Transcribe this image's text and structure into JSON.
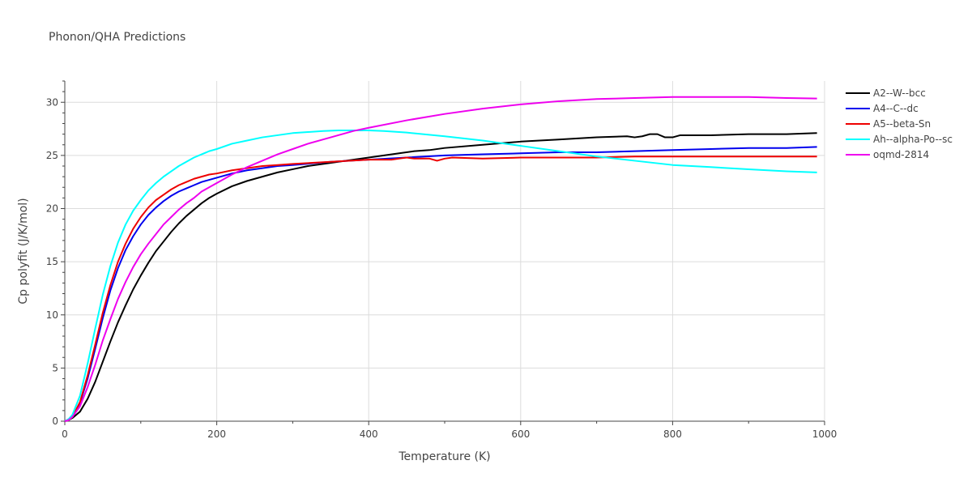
{
  "chart_data": {
    "type": "line",
    "title": "Phonon/QHA Predictions",
    "xlabel": "Temperature (K)",
    "ylabel": "Cp polyfit (J/K/mol)",
    "xlim": [
      0,
      1000
    ],
    "ylim": [
      0,
      32
    ],
    "xticks": [
      0,
      200,
      400,
      600,
      800,
      1000
    ],
    "yticks": [
      0,
      5,
      10,
      15,
      20,
      25,
      30
    ],
    "grid": true,
    "legend_position": "top-right",
    "series": [
      {
        "name": "A2--W--bcc",
        "color": "#000000",
        "x": [
          0,
          5,
          10,
          20,
          30,
          40,
          50,
          60,
          70,
          80,
          90,
          100,
          110,
          120,
          130,
          140,
          150,
          160,
          170,
          180,
          190,
          200,
          220,
          240,
          260,
          280,
          300,
          320,
          340,
          360,
          380,
          400,
          420,
          440,
          460,
          480,
          500,
          550,
          600,
          650,
          700,
          740,
          750,
          760,
          770,
          775,
          780,
          790,
          800,
          810,
          850,
          900,
          950,
          990
        ],
        "y": [
          0,
          0.1,
          0.3,
          0.9,
          2.1,
          3.7,
          5.6,
          7.5,
          9.3,
          10.9,
          12.4,
          13.7,
          14.9,
          16.0,
          16.9,
          17.8,
          18.6,
          19.3,
          19.9,
          20.5,
          21.0,
          21.4,
          22.1,
          22.6,
          23.0,
          23.4,
          23.7,
          24.0,
          24.2,
          24.4,
          24.6,
          24.8,
          25.0,
          25.2,
          25.4,
          25.5,
          25.7,
          26.0,
          26.3,
          26.5,
          26.7,
          26.8,
          26.7,
          26.8,
          27.0,
          27.0,
          27.0,
          26.7,
          26.7,
          26.9,
          26.9,
          27.0,
          27.0,
          27.1
        ]
      },
      {
        "name": "A4--C--dc",
        "color": "#0000ee",
        "x": [
          0,
          5,
          10,
          20,
          30,
          40,
          50,
          60,
          70,
          80,
          90,
          100,
          110,
          120,
          130,
          140,
          150,
          160,
          170,
          180,
          190,
          200,
          220,
          240,
          260,
          280,
          300,
          350,
          400,
          450,
          500,
          550,
          600,
          650,
          700,
          750,
          800,
          850,
          900,
          950,
          990
        ],
        "y": [
          0,
          0.1,
          0.4,
          1.7,
          4.0,
          6.8,
          9.7,
          12.3,
          14.4,
          16.1,
          17.4,
          18.5,
          19.4,
          20.1,
          20.7,
          21.2,
          21.6,
          21.9,
          22.2,
          22.5,
          22.7,
          22.9,
          23.3,
          23.6,
          23.8,
          24.0,
          24.1,
          24.4,
          24.6,
          24.8,
          25.0,
          25.1,
          25.2,
          25.3,
          25.3,
          25.4,
          25.5,
          25.6,
          25.7,
          25.7,
          25.8
        ]
      },
      {
        "name": "A5--beta-Sn",
        "color": "#ee0000",
        "x": [
          0,
          5,
          10,
          20,
          30,
          40,
          50,
          60,
          70,
          80,
          90,
          100,
          110,
          120,
          130,
          140,
          150,
          160,
          170,
          180,
          190,
          200,
          220,
          240,
          260,
          280,
          300,
          350,
          400,
          430,
          440,
          450,
          460,
          470,
          480,
          490,
          500,
          510,
          550,
          600,
          650,
          700,
          750,
          800,
          850,
          900,
          950,
          990
        ],
        "y": [
          0,
          0.1,
          0.4,
          1.8,
          4.3,
          7.2,
          10.2,
          12.8,
          15.0,
          16.7,
          18.1,
          19.2,
          20.1,
          20.8,
          21.3,
          21.8,
          22.2,
          22.5,
          22.8,
          23.0,
          23.2,
          23.3,
          23.6,
          23.8,
          24.0,
          24.1,
          24.2,
          24.4,
          24.6,
          24.6,
          24.7,
          24.8,
          24.7,
          24.7,
          24.7,
          24.5,
          24.7,
          24.8,
          24.7,
          24.8,
          24.8,
          24.8,
          24.9,
          24.9,
          24.9,
          24.9,
          24.9,
          24.9
        ]
      },
      {
        "name": "Ah--alpha-Po--sc",
        "color": "#00ffff",
        "x": [
          0,
          5,
          10,
          20,
          30,
          40,
          50,
          60,
          70,
          80,
          90,
          100,
          110,
          120,
          130,
          140,
          150,
          160,
          170,
          180,
          190,
          200,
          220,
          240,
          260,
          280,
          300,
          320,
          340,
          360,
          380,
          400,
          420,
          450,
          500,
          550,
          600,
          650,
          700,
          750,
          800,
          850,
          900,
          950,
          990
        ],
        "y": [
          0,
          0.2,
          0.6,
          2.4,
          5.4,
          8.7,
          11.9,
          14.6,
          16.8,
          18.5,
          19.8,
          20.8,
          21.7,
          22.4,
          23.0,
          23.5,
          24.0,
          24.4,
          24.8,
          25.1,
          25.4,
          25.6,
          26.1,
          26.4,
          26.7,
          26.9,
          27.1,
          27.2,
          27.3,
          27.35,
          27.35,
          27.35,
          27.3,
          27.15,
          26.8,
          26.4,
          25.9,
          25.4,
          24.9,
          24.5,
          24.1,
          23.9,
          23.7,
          23.5,
          23.4
        ]
      },
      {
        "name": "oqmd-2814",
        "color": "#ee00ee",
        "x": [
          0,
          5,
          10,
          20,
          30,
          40,
          50,
          60,
          70,
          80,
          90,
          100,
          110,
          120,
          130,
          140,
          150,
          160,
          170,
          180,
          190,
          200,
          220,
          240,
          260,
          280,
          300,
          320,
          340,
          360,
          380,
          400,
          450,
          500,
          550,
          600,
          650,
          700,
          750,
          800,
          850,
          900,
          950,
          990
        ],
        "y": [
          0,
          0.1,
          0.4,
          1.4,
          3.2,
          5.3,
          7.6,
          9.6,
          11.5,
          13.1,
          14.5,
          15.7,
          16.7,
          17.6,
          18.5,
          19.2,
          19.9,
          20.5,
          21.0,
          21.6,
          22.0,
          22.4,
          23.2,
          23.9,
          24.5,
          25.1,
          25.6,
          26.1,
          26.5,
          26.9,
          27.3,
          27.6,
          28.3,
          28.9,
          29.4,
          29.8,
          30.1,
          30.3,
          30.4,
          30.5,
          30.5,
          30.5,
          30.4,
          30.35
        ]
      }
    ]
  }
}
